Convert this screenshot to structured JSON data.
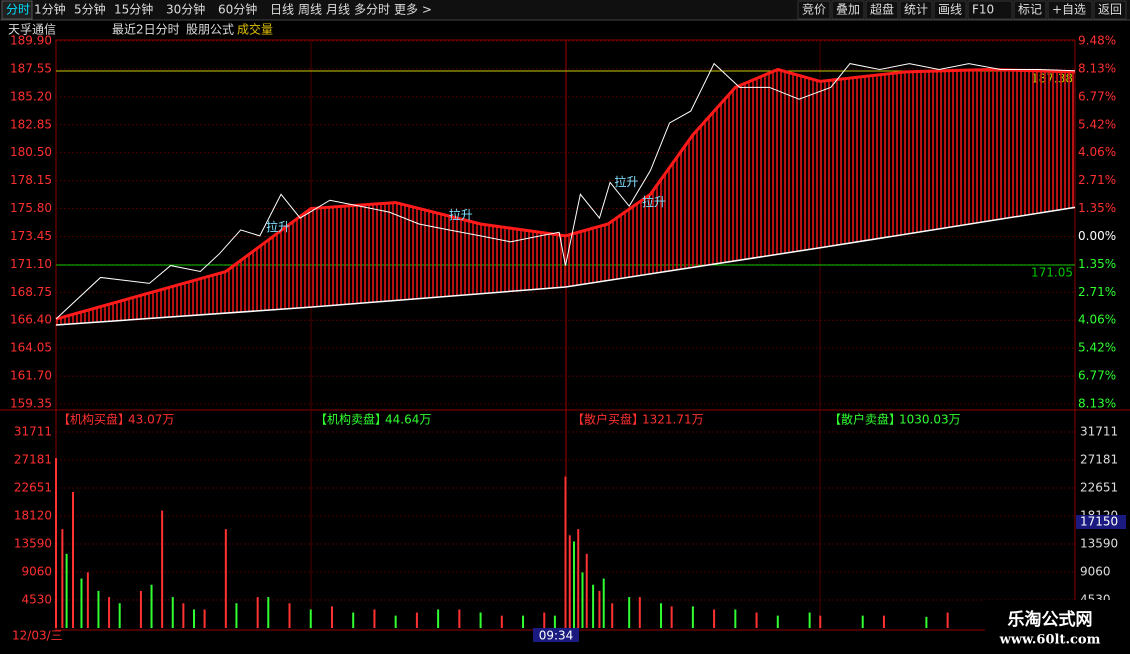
{
  "toolbar": {
    "left": [
      "分时",
      "1分钟",
      "5分钟",
      "15分钟",
      "30分钟",
      "60分钟",
      "日线",
      "周线",
      "月线",
      "多分时",
      "更多 >"
    ],
    "right": [
      "竞价",
      "叠加",
      "超盘",
      "统计",
      "画线",
      "F10",
      "标记",
      "+自选",
      "返回"
    ]
  },
  "header": {
    "stock": "天孚通信",
    "mode": "最近2日分时",
    "formula": "股朋公式",
    "indicator": "成交量"
  },
  "price_panel": {
    "ylim": [
      159.35,
      189.9
    ],
    "yticks": [
      {
        "value": 189.9,
        "label": "189.90"
      },
      {
        "value": 187.55,
        "label": "187.55"
      },
      {
        "value": 185.2,
        "label": "185.20"
      },
      {
        "value": 182.85,
        "label": "182.85"
      },
      {
        "value": 180.5,
        "label": "180.50"
      },
      {
        "value": 178.15,
        "label": "178.15"
      },
      {
        "value": 175.8,
        "label": "175.80"
      },
      {
        "value": 173.45,
        "label": "173.45"
      },
      {
        "value": 171.1,
        "label": "171.10"
      },
      {
        "value": 168.75,
        "label": "168.75"
      },
      {
        "value": 166.4,
        "label": "166.40"
      },
      {
        "value": 164.05,
        "label": "164.05"
      },
      {
        "value": 161.7,
        "label": "161.70"
      },
      {
        "value": 159.35,
        "label": "159.35"
      }
    ],
    "pct_labels": [
      "9.48%",
      "8.13%",
      "6.77%",
      "5.42%",
      "4.06%",
      "2.71%",
      "1.35%",
      "0.00%",
      "1.35%",
      "2.71%",
      "4.06%",
      "5.42%",
      "6.77%",
      "8.13%"
    ],
    "xlim": [
      0,
      480
    ],
    "price": {
      "color": "#ffffff",
      "x": [
        0,
        21,
        44,
        54,
        68,
        77,
        87,
        96,
        106,
        115,
        129,
        143,
        157,
        171,
        185,
        200,
        214,
        228,
        237,
        240,
        247,
        256,
        261,
        270,
        280,
        289,
        299,
        310,
        322,
        336,
        350,
        365,
        374,
        388,
        402,
        416,
        430,
        445,
        463,
        480
      ],
      "values": [
        166.5,
        170,
        169.5,
        171,
        170.5,
        172,
        174,
        173.5,
        177,
        175,
        176.5,
        176,
        175.5,
        174.5,
        174,
        173.5,
        173,
        173.5,
        173.8,
        171,
        177,
        175,
        178,
        176,
        179,
        183,
        184,
        188,
        186,
        186,
        185,
        186,
        188,
        187.5,
        188,
        187.5,
        188,
        187.5,
        187.5,
        187.4
      ]
    },
    "trend": {
      "color": "#ff1a1a",
      "x": [
        0,
        40,
        80,
        120,
        160,
        200,
        240,
        260,
        280,
        300,
        320,
        340,
        360,
        400,
        440,
        480
      ],
      "values": [
        166.5,
        168.5,
        170.5,
        175.8,
        176.3,
        174.5,
        173.5,
        174.5,
        177,
        182,
        186,
        187.5,
        186.5,
        187.3,
        187.5,
        187.3
      ]
    },
    "average": {
      "color": "#ffffff",
      "x": [
        0,
        120,
        240,
        360,
        480
      ],
      "values": [
        166,
        167.5,
        169.2,
        172.5,
        175.9
      ]
    },
    "levels": [
      {
        "value": 187.38,
        "label": "187.38",
        "color": "#c8c800"
      },
      {
        "value": 171.05,
        "label": "171.05",
        "color": "#00c800"
      }
    ],
    "annotations": [
      {
        "x": 99,
        "y": 174.2,
        "text": "拉升"
      },
      {
        "x": 185,
        "y": 175.2,
        "text": "拉升"
      },
      {
        "x": 263,
        "y": 178.0,
        "text": "拉升"
      },
      {
        "x": 276,
        "y": 176.3,
        "text": "拉升"
      }
    ]
  },
  "info_row": [
    {
      "label": "【机构买盘】",
      "value": "43.07万",
      "color": "#ff3030"
    },
    {
      "label": "【机构卖盘】",
      "value": "44.64万",
      "color": "#30ff30"
    },
    {
      "label": "【散户买盘】",
      "value": "1321.71万",
      "color": "#ff3030"
    },
    {
      "label": "【散户卖盘】",
      "value": "1030.03万",
      "color": "#30ff30"
    }
  ],
  "volume_panel": {
    "ylim": [
      0,
      31711
    ],
    "yticks": [
      31711,
      27181,
      22651,
      18120,
      13590,
      9060,
      4530
    ],
    "cursor_value": 17150,
    "series": [
      {
        "color": "#ff3232",
        "x": [
          0,
          3,
          8,
          15,
          25,
          40,
          50,
          60,
          70,
          80,
          95,
          110,
          130,
          150,
          170,
          190,
          210,
          230,
          240,
          242,
          246,
          250,
          256,
          262,
          275,
          290,
          310,
          330,
          360,
          390,
          420,
          450,
          470
        ],
        "values": [
          27500,
          16000,
          22000,
          9000,
          5000,
          6000,
          19000,
          4000,
          3000,
          16000,
          5000,
          4000,
          3500,
          3000,
          2500,
          3000,
          2000,
          2500,
          24500,
          15000,
          16000,
          12000,
          6000,
          4000,
          5000,
          3500,
          3000,
          2500,
          2000,
          2000,
          2500,
          2000,
          1800
        ]
      },
      {
        "color": "#32ff32",
        "x": [
          5,
          12,
          20,
          30,
          45,
          55,
          65,
          85,
          100,
          120,
          140,
          160,
          180,
          200,
          220,
          235,
          244,
          248,
          253,
          258,
          270,
          285,
          300,
          320,
          340,
          355,
          380,
          410,
          440,
          460,
          478
        ],
        "values": [
          12000,
          8000,
          6000,
          4000,
          7000,
          5000,
          3000,
          4000,
          5000,
          3000,
          2500,
          2000,
          3000,
          2500,
          2000,
          2000,
          14000,
          9000,
          7000,
          8000,
          5000,
          4000,
          3500,
          3000,
          2000,
          2500,
          2000,
          1800,
          2000,
          3000,
          1500
        ]
      }
    ]
  },
  "footer": {
    "date": "12/03/三",
    "cursor_time": "09:34"
  },
  "watermark": {
    "name": "乐淘公式网",
    "url": "www.60lt.com"
  }
}
